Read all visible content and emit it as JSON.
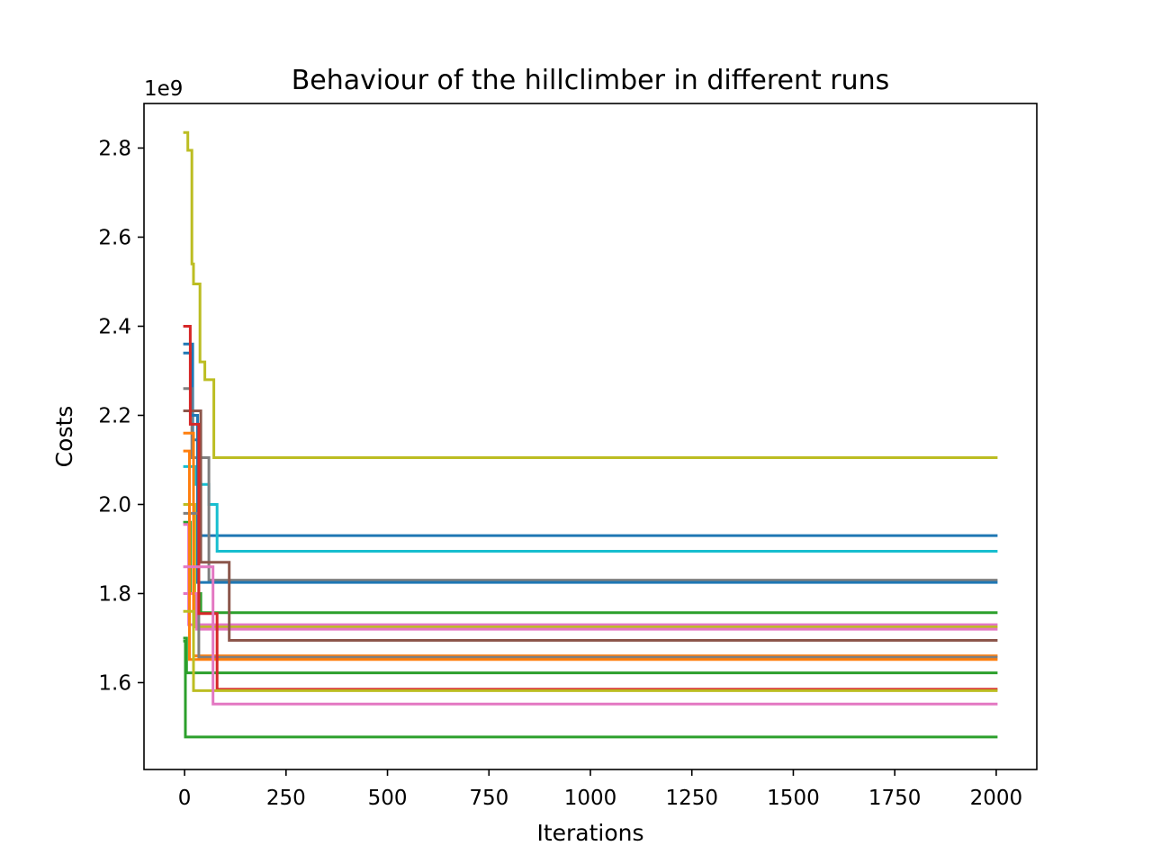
{
  "chart_data": {
    "type": "line",
    "title": "Behaviour of the hillclimber in different runs",
    "xlabel": "Iterations",
    "ylabel": "Costs",
    "y_offset_label": "1e9",
    "y_scale": 1000000000,
    "xlim": [
      -100,
      2100
    ],
    "ylim": [
      1.405,
      2.9
    ],
    "x_ticks": [
      0,
      250,
      500,
      750,
      1000,
      1250,
      1500,
      1750,
      2000
    ],
    "x_tick_labels": [
      "0",
      "250",
      "500",
      "750",
      "1000",
      "1250",
      "1500",
      "1750",
      "2000"
    ],
    "y_ticks": [
      1.6,
      1.8,
      2.0,
      2.2,
      2.4,
      2.6,
      2.8
    ],
    "y_tick_labels": [
      "1.6",
      "1.8",
      "2.0",
      "2.2",
      "2.4",
      "2.6",
      "2.8"
    ],
    "grid": false,
    "legend": "none",
    "series": [
      {
        "color": "#bcbd22",
        "points": [
          [
            0,
            2.835
          ],
          [
            8,
            2.835
          ],
          [
            8,
            2.795
          ],
          [
            18,
            2.795
          ],
          [
            18,
            2.54
          ],
          [
            22,
            2.54
          ],
          [
            22,
            2.495
          ],
          [
            38,
            2.495
          ],
          [
            38,
            2.32
          ],
          [
            50,
            2.32
          ],
          [
            50,
            2.28
          ],
          [
            72,
            2.28
          ],
          [
            72,
            2.105
          ],
          [
            2000,
            2.105
          ]
        ]
      },
      {
        "color": "#1f77b4",
        "points": [
          [
            0,
            2.36
          ],
          [
            20,
            2.36
          ],
          [
            20,
            2.145
          ],
          [
            38,
            2.145
          ],
          [
            38,
            1.93
          ],
          [
            2000,
            1.93
          ]
        ]
      },
      {
        "color": "#17becf",
        "points": [
          [
            0,
            2.085
          ],
          [
            28,
            2.085
          ],
          [
            28,
            2.045
          ],
          [
            60,
            2.045
          ],
          [
            60,
            2.0
          ],
          [
            80,
            2.0
          ],
          [
            80,
            1.895
          ],
          [
            2000,
            1.895
          ]
        ]
      },
      {
        "color": "#7f7f7f",
        "points": [
          [
            0,
            2.26
          ],
          [
            18,
            2.26
          ],
          [
            18,
            2.105
          ],
          [
            60,
            2.105
          ],
          [
            60,
            1.83
          ],
          [
            2000,
            1.83
          ]
        ]
      },
      {
        "color": "#1f77b4",
        "points": [
          [
            0,
            2.34
          ],
          [
            15,
            2.34
          ],
          [
            15,
            2.2
          ],
          [
            32,
            2.2
          ],
          [
            32,
            1.825
          ],
          [
            2000,
            1.825
          ]
        ]
      },
      {
        "color": "#2ca02c",
        "points": [
          [
            0,
            1.96
          ],
          [
            14,
            1.96
          ],
          [
            14,
            1.8
          ],
          [
            40,
            1.8
          ],
          [
            40,
            1.757
          ],
          [
            2000,
            1.757
          ]
        ]
      },
      {
        "color": "#e377c2",
        "points": [
          [
            0,
            1.955
          ],
          [
            10,
            1.955
          ],
          [
            10,
            1.73
          ],
          [
            2000,
            1.73
          ]
        ]
      },
      {
        "color": "#bcbd22",
        "points": [
          [
            0,
            2.0
          ],
          [
            25,
            2.0
          ],
          [
            25,
            1.725
          ],
          [
            2000,
            1.725
          ]
        ]
      },
      {
        "color": "#e377c2",
        "points": [
          [
            0,
            1.8
          ],
          [
            30,
            1.8
          ],
          [
            30,
            1.72
          ],
          [
            2000,
            1.72
          ]
        ]
      },
      {
        "color": "#8c564b",
        "points": [
          [
            0,
            2.21
          ],
          [
            40,
            2.21
          ],
          [
            40,
            1.87
          ],
          [
            110,
            1.87
          ],
          [
            110,
            1.695
          ],
          [
            2000,
            1.695
          ]
        ]
      },
      {
        "color": "#ff7f0e",
        "points": [
          [
            0,
            2.16
          ],
          [
            22,
            2.16
          ],
          [
            22,
            1.66
          ],
          [
            2000,
            1.66
          ]
        ]
      },
      {
        "color": "#7f7f7f",
        "points": [
          [
            0,
            1.98
          ],
          [
            35,
            1.98
          ],
          [
            35,
            1.657
          ],
          [
            2000,
            1.657
          ]
        ]
      },
      {
        "color": "#ff7f0e",
        "points": [
          [
            0,
            2.12
          ],
          [
            12,
            2.12
          ],
          [
            12,
            1.652
          ],
          [
            2000,
            1.652
          ]
        ]
      },
      {
        "color": "#2ca02c",
        "points": [
          [
            0,
            1.7
          ],
          [
            5,
            1.7
          ],
          [
            5,
            1.622
          ],
          [
            2000,
            1.622
          ]
        ]
      },
      {
        "color": "#d62728",
        "points": [
          [
            0,
            2.4
          ],
          [
            14,
            2.4
          ],
          [
            14,
            2.18
          ],
          [
            35,
            2.18
          ],
          [
            35,
            1.755
          ],
          [
            80,
            1.755
          ],
          [
            80,
            1.585
          ],
          [
            2000,
            1.585
          ]
        ]
      },
      {
        "color": "#bcbd22",
        "points": [
          [
            0,
            1.76
          ],
          [
            22,
            1.76
          ],
          [
            22,
            1.582
          ],
          [
            2000,
            1.582
          ]
        ]
      },
      {
        "color": "#e377c2",
        "points": [
          [
            0,
            1.86
          ],
          [
            70,
            1.86
          ],
          [
            70,
            1.552
          ],
          [
            2000,
            1.552
          ]
        ]
      },
      {
        "color": "#2ca02c",
        "points": [
          [
            0,
            1.693
          ],
          [
            2,
            1.693
          ],
          [
            2,
            1.478
          ],
          [
            2000,
            1.478
          ]
        ]
      }
    ]
  }
}
